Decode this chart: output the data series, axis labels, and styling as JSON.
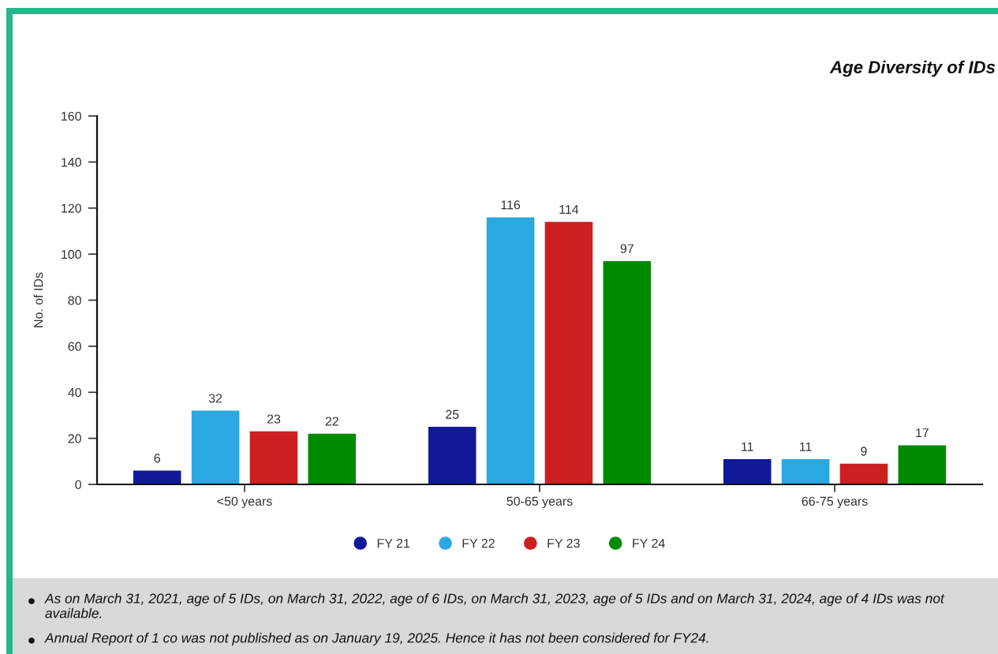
{
  "chart_data": {
    "type": "bar",
    "title": "Age Diversity of IDs",
    "ylabel": "No. of IDs",
    "categories": [
      "<50 years",
      "50-65 years",
      "66-75 years"
    ],
    "series": [
      {
        "name": "FY 21",
        "color": "#12189a",
        "values": [
          6,
          25,
          11
        ]
      },
      {
        "name": "FY 22",
        "color": "#29a9e0",
        "values": [
          32,
          116,
          11
        ]
      },
      {
        "name": "FY 23",
        "color": "#cc1f1f",
        "values": [
          23,
          114,
          9
        ]
      },
      {
        "name": "FY 24",
        "color": "#008a00",
        "values": [
          22,
          97,
          17
        ]
      }
    ],
    "ylim": [
      0,
      160
    ],
    "yticks": [
      0,
      20,
      40,
      60,
      80,
      100,
      120,
      140,
      160
    ],
    "grid": false,
    "legend": "bottom",
    "data_labels": true,
    "annotations": [
      "As on March 31, 2021, age of 5 IDs, on March 31, 2022, age of 6 IDs, on March 31, 2023, age of 5 IDs and on March 31, 2024, age of 4 IDs was not available.",
      "Annual Report of 1 co was not published as on January 19, 2025. Hence it has not been considered for FY24."
    ]
  }
}
